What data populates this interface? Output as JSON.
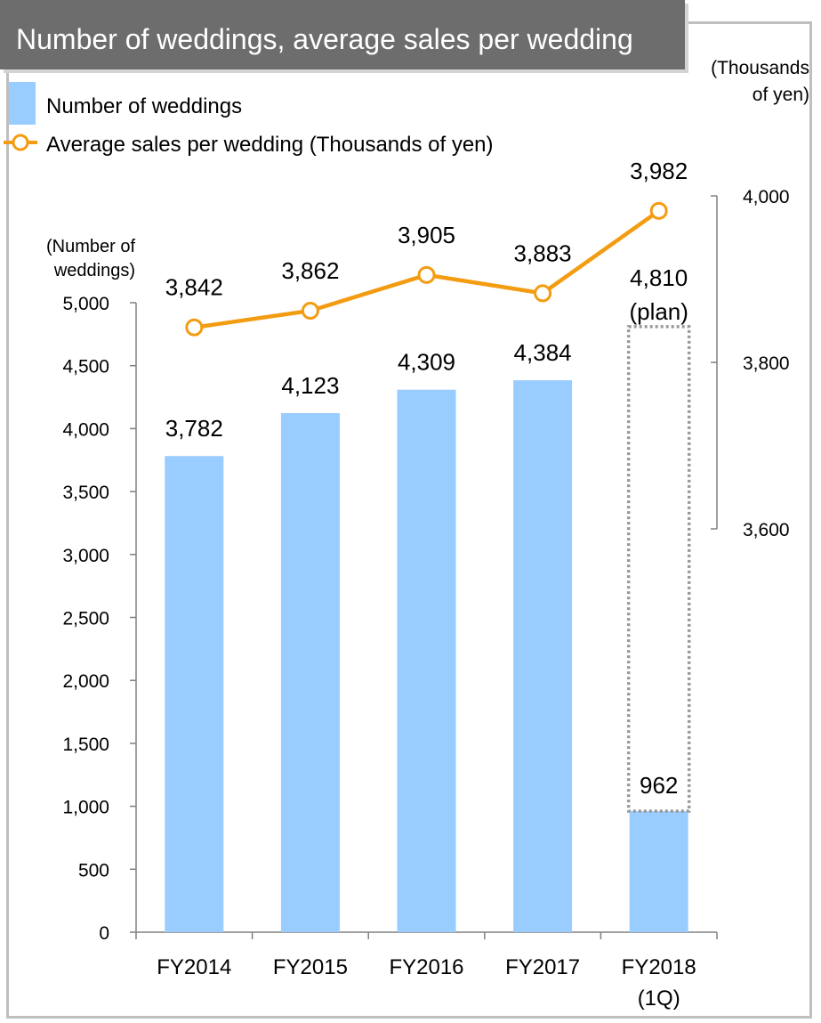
{
  "header": {
    "title": "Number of weddings, average sales per wedding"
  },
  "colors": {
    "bar": "#99ccff",
    "line": "#f39c12",
    "marker_fill": "#ffffff",
    "title_bg": "#6d6d6d",
    "title_text": "#ffffff",
    "plan_outline": "#999999",
    "axis": "#808080"
  },
  "chart_data": {
    "type": "bar+line",
    "categories": [
      [
        "FY2014"
      ],
      [
        "FY2015"
      ],
      [
        "FY2016"
      ],
      [
        "FY2017"
      ],
      [
        "FY2018",
        "(1Q)"
      ]
    ],
    "series": [
      {
        "name": "Number of weddings",
        "type": "bar",
        "axis": "left",
        "values": [
          3782,
          4123,
          4309,
          4384,
          962
        ],
        "labels": [
          "3,782",
          "4,123",
          "4,309",
          "4,384",
          "962"
        ]
      },
      {
        "name": "Average sales per wedding (Thousands of yen)",
        "type": "line",
        "axis": "right",
        "values": [
          3842,
          3862,
          3905,
          3883,
          3982
        ],
        "labels": [
          "3,842",
          "3,862",
          "3,905",
          "3,883",
          "3,982"
        ]
      }
    ],
    "plan": {
      "category_index": 4,
      "value": 4810,
      "label_lines": [
        "4,810",
        "(plan)"
      ]
    },
    "left_axis": {
      "label_lines": [
        "(Number of",
        "weddings)"
      ],
      "ylim": [
        0,
        5000
      ],
      "ticks": [
        0,
        500,
        1000,
        1500,
        2000,
        2500,
        3000,
        3500,
        4000,
        4500,
        5000
      ],
      "tick_labels": [
        "0",
        "500",
        "1,000",
        "1,500",
        "2,000",
        "2,500",
        "3,000",
        "3,500",
        "4,000",
        "4,500",
        "5,000"
      ]
    },
    "right_axis": {
      "label_lines": [
        "(Thousands",
        "of yen)"
      ],
      "ylim": [
        3600,
        4000
      ],
      "ticks": [
        3600,
        3800,
        4000
      ],
      "tick_labels": [
        "3,600",
        "3,800",
        "4,000"
      ]
    },
    "legend": {
      "position": "top-left",
      "entries": [
        "Number of weddings",
        "Average sales per wedding (Thousands of yen)"
      ]
    },
    "grid": false
  }
}
